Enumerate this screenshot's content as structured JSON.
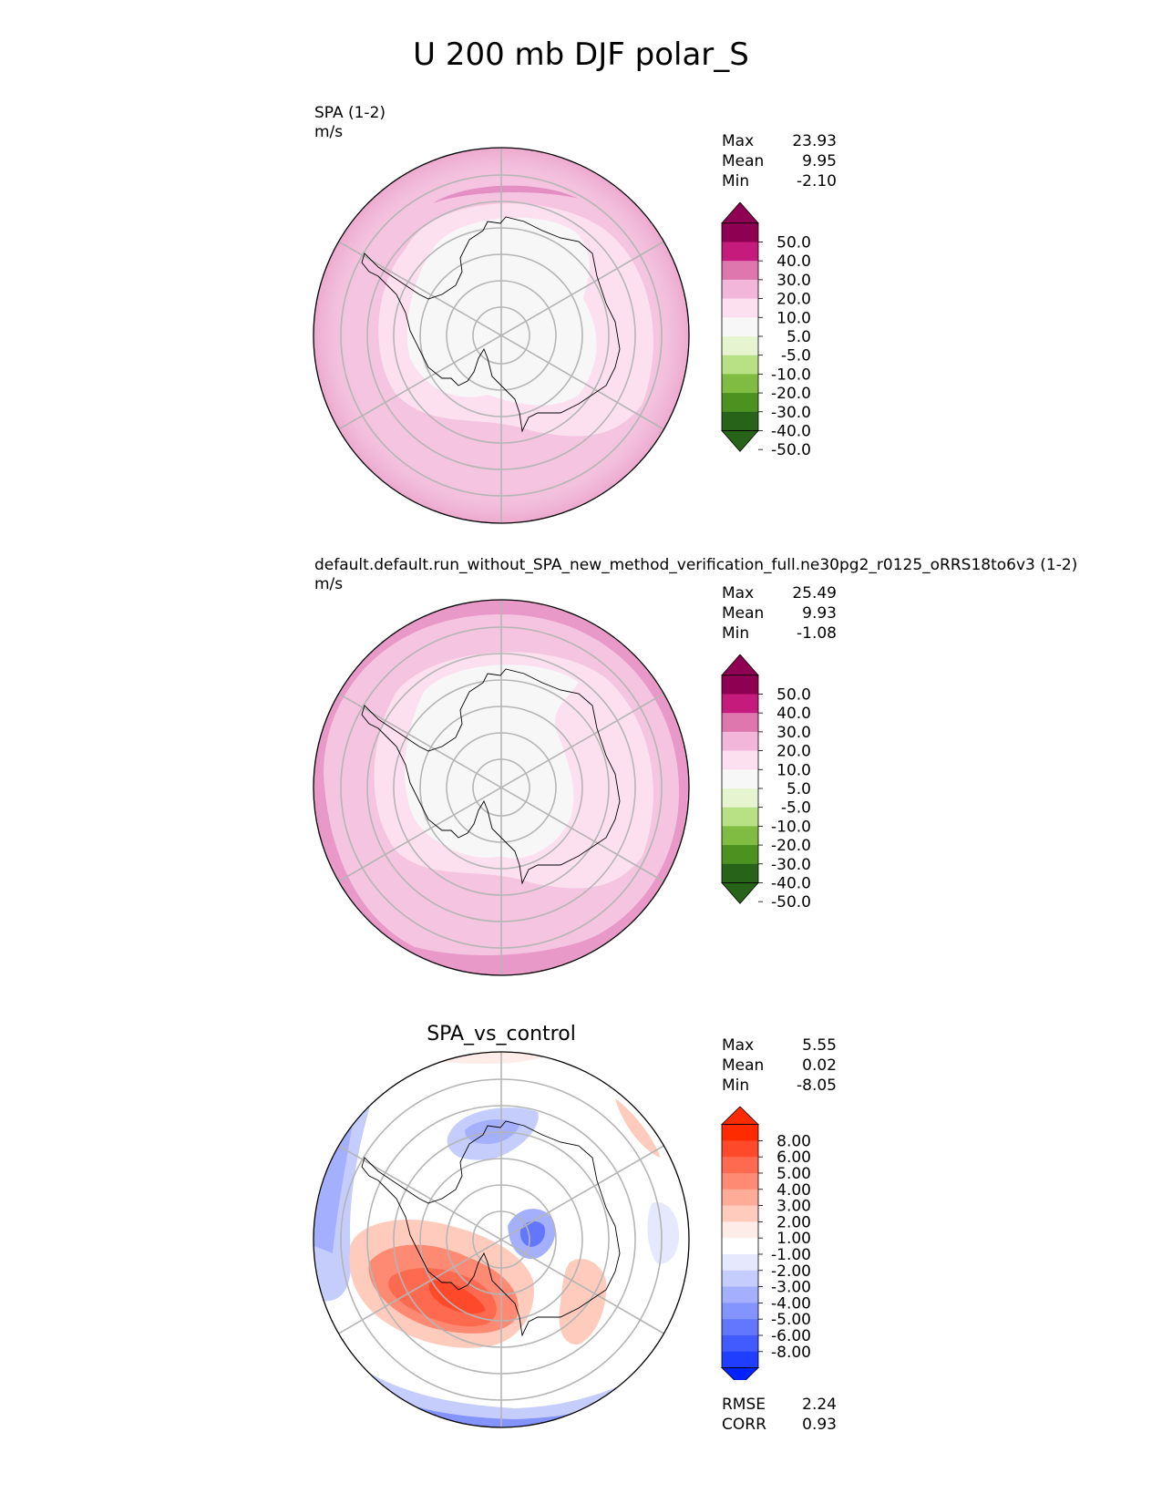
{
  "figure": {
    "title": "U 200 mb DJF polar_S"
  },
  "panels": [
    {
      "name": "test",
      "label": "SPA (1-2)",
      "units": "m/s",
      "stats": [
        {
          "label": "Max",
          "value": "23.93"
        },
        {
          "label": "Mean",
          "value": "9.95"
        },
        {
          "label": "Min",
          "value": "-2.10"
        }
      ],
      "colorbar": {
        "ticks": [
          "50.0",
          "40.0",
          "30.0",
          "20.0",
          "10.0",
          "5.0",
          "-5.0",
          "-10.0",
          "-20.0",
          "-30.0",
          "-40.0",
          "-50.0"
        ],
        "colors": [
          "#8e0152",
          "#c51b7d",
          "#de77ae",
          "#f1b6da",
          "#fde0ef",
          "#f7f7f7",
          "#e6f5d0",
          "#b8e186",
          "#7fbc41",
          "#4d9221",
          "#276419"
        ]
      }
    },
    {
      "name": "reference",
      "label": "default.default.run_without_SPA_new_method_verification_full.ne30pg2_r0125_oRRS18to6v3 (1-2)",
      "units": "m/s",
      "stats": [
        {
          "label": "Max",
          "value": "25.49"
        },
        {
          "label": "Mean",
          "value": "9.93"
        },
        {
          "label": "Min",
          "value": "-1.08"
        }
      ],
      "colorbar": {
        "ticks": [
          "50.0",
          "40.0",
          "30.0",
          "20.0",
          "10.0",
          "5.0",
          "-5.0",
          "-10.0",
          "-20.0",
          "-30.0",
          "-40.0",
          "-50.0"
        ],
        "colors": [
          "#8e0152",
          "#c51b7d",
          "#de77ae",
          "#f1b6da",
          "#fde0ef",
          "#f7f7f7",
          "#e6f5d0",
          "#b8e186",
          "#7fbc41",
          "#4d9221",
          "#276419"
        ]
      }
    },
    {
      "name": "difference",
      "title": "SPA_vs_control",
      "stats": [
        {
          "label": "Max",
          "value": "5.55"
        },
        {
          "label": "Mean",
          "value": "0.02"
        },
        {
          "label": "Min",
          "value": "-8.05"
        }
      ],
      "metrics": [
        {
          "label": "RMSE",
          "value": "2.24"
        },
        {
          "label": "CORR",
          "value": "0.93"
        }
      ],
      "colorbar": {
        "ticks": [
          "8.00",
          "6.00",
          "5.00",
          "4.00",
          "3.00",
          "2.00",
          "1.00",
          "-1.00",
          "-2.00",
          "-3.00",
          "-4.00",
          "-5.00",
          "-6.00",
          "-8.00"
        ],
        "colors": [
          "#fe2a00",
          "#fe4a2a",
          "#fe6a4f",
          "#fe8a73",
          "#feab98",
          "#fecbbd",
          "#fdece7",
          "#ffffff",
          "#e6e9fd",
          "#c5cdfd",
          "#a4b0fe",
          "#8394fe",
          "#6277fe",
          "#415bfe",
          "#1f3efe"
        ],
        "end_colors": [
          "#fe2a00",
          "#0022fe"
        ]
      }
    }
  ]
}
